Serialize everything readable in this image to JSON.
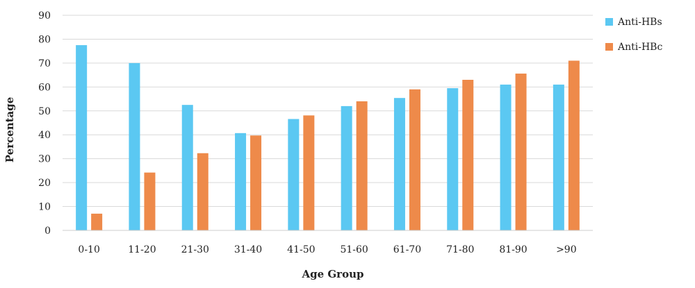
{
  "chart_data": {
    "type": "bar",
    "title": "",
    "xlabel": "Age Group",
    "ylabel": "Percentage",
    "ylim": [
      0,
      90
    ],
    "yticks": [
      0,
      10,
      20,
      30,
      40,
      50,
      60,
      70,
      80,
      90
    ],
    "grid": true,
    "legend_position": "right",
    "categories": [
      "0-10",
      "11-20",
      "21-30",
      "31-40",
      "41-50",
      "51-60",
      "61-70",
      "71-80",
      "81-90",
      ">90"
    ],
    "series": [
      {
        "name": "Anti-HBs",
        "color": "#5BC8F2",
        "values": [
          77.5,
          70,
          52.5,
          40.7,
          46.6,
          52,
          55.4,
          59.5,
          61,
          61
        ]
      },
      {
        "name": "Anti-HBc",
        "color": "#EE8A4A",
        "values": [
          7,
          24.2,
          32.3,
          39.7,
          48.1,
          54,
          59,
          63,
          65.6,
          71
        ]
      }
    ]
  }
}
